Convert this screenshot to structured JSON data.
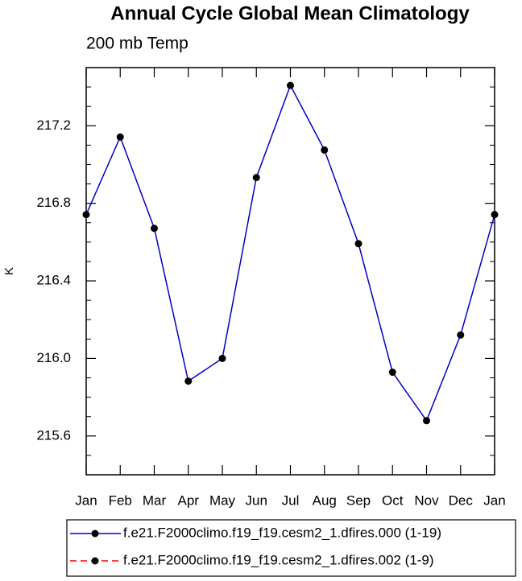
{
  "chart_data": {
    "type": "line",
    "title": "Annual Cycle Global Mean Climatology",
    "subtitle": "200 mb Temp",
    "y_label": "K",
    "categories": [
      "Jan",
      "Feb",
      "Mar",
      "Apr",
      "May",
      "Jun",
      "Jul",
      "Aug",
      "Sep",
      "Oct",
      "Nov",
      "Dec",
      "Jan"
    ],
    "series": [
      {
        "name": "f.e21.F2000climo.f19_f19.cesm2_1.dfires.000 (1-19)",
        "color": "#0000cc",
        "dash": false,
        "values": [
          216.742,
          217.142,
          216.671,
          215.883,
          216.0,
          216.933,
          217.408,
          217.075,
          216.592,
          215.929,
          215.679,
          216.121,
          216.742
        ]
      },
      {
        "name": "f.e21.F2000climo.f19_f19.cesm2_1.dfires.002 (1-9)",
        "color": "#ff0000",
        "dash": true,
        "values": [
          null,
          null,
          null,
          null,
          null,
          null,
          null,
          null,
          null,
          null,
          null,
          null,
          null
        ]
      }
    ],
    "ylim": [
      215.4,
      217.5
    ],
    "yticks": [
      {
        "value": 215.6,
        "label": "215.6"
      },
      {
        "value": 216.0,
        "label": "216.0"
      },
      {
        "value": 216.4,
        "label": "216.4"
      },
      {
        "value": 216.8,
        "label": "216.8"
      },
      {
        "value": 217.2,
        "label": "217.2"
      }
    ],
    "yminorticks": [
      215.5,
      215.7,
      215.8,
      215.9,
      216.1,
      216.2,
      216.3,
      216.5,
      216.6,
      216.7,
      216.9,
      217.0,
      217.1,
      217.3,
      217.4
    ],
    "marker_color": "#000000"
  }
}
